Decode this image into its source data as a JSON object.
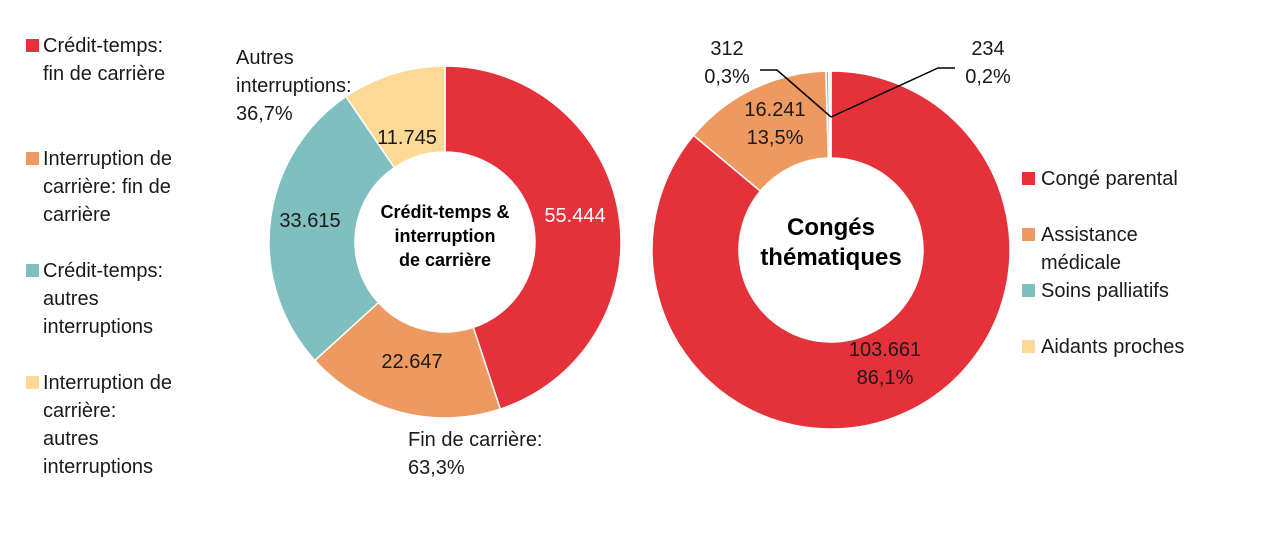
{
  "chart_data": [
    {
      "type": "pie",
      "center_title": "Crédit-temps &\ninterruption\nde carrière",
      "series": [
        {
          "name": "Crédit-temps: fin de carrière",
          "value": 55444,
          "label": "55.444",
          "color": "#E5313A"
        },
        {
          "name": "Interruption de carrière: fin de carrière",
          "value": 22647,
          "label": "22.647",
          "color": "#EE995F"
        },
        {
          "name": "Crédit-temps: autres interruptions",
          "value": 33615,
          "label": "33.615",
          "color": "#80BFBF"
        },
        {
          "name": "Interruption de carrière: autres interruptions",
          "value": 11745,
          "label": "11.745",
          "color": "#FCD995"
        }
      ],
      "group_labels": [
        {
          "text": "Autres\ninterruptions:\n36,7%"
        },
        {
          "text": "Fin de carrière:\n63,3%"
        }
      ],
      "legend": [
        {
          "text": "Crédit-temps:\nfin de carrière",
          "color": "#E5313A"
        },
        {
          "text": "Interruption de\ncarrière: fin de\ncarrière",
          "color": "#EE995F"
        },
        {
          "text": "Crédit-temps:\nautres\ninterruptions",
          "color": "#80BFBF"
        },
        {
          "text": "Interruption de\ncarrière:\nautres\ninterruptions",
          "color": "#FCD995"
        }
      ]
    },
    {
      "type": "pie",
      "center_title": "Congés\nthématiques",
      "series": [
        {
          "name": "Congé parental",
          "value": 103661,
          "label": "103.661\n86,1%",
          "color": "#E5313A"
        },
        {
          "name": "Assistance médicale",
          "value": 16241,
          "label": "16.241\n13,5%",
          "color": "#EE995F"
        },
        {
          "name": "Soins palliatifs",
          "value": 312,
          "label": "312\n0,3%",
          "color": "#80BFBF"
        },
        {
          "name": "Aidants proches",
          "value": 234,
          "label": "234\n0,2%",
          "color": "#FCD995"
        }
      ],
      "legend": [
        {
          "text": "Congé parental",
          "color": "#E5313A"
        },
        {
          "text": "Assistance\nmédicale",
          "color": "#EE995F"
        },
        {
          "text": "Soins palliatifs",
          "color": "#80BFBF"
        },
        {
          "text": "Aidants proches",
          "color": "#FCD995"
        }
      ]
    }
  ]
}
